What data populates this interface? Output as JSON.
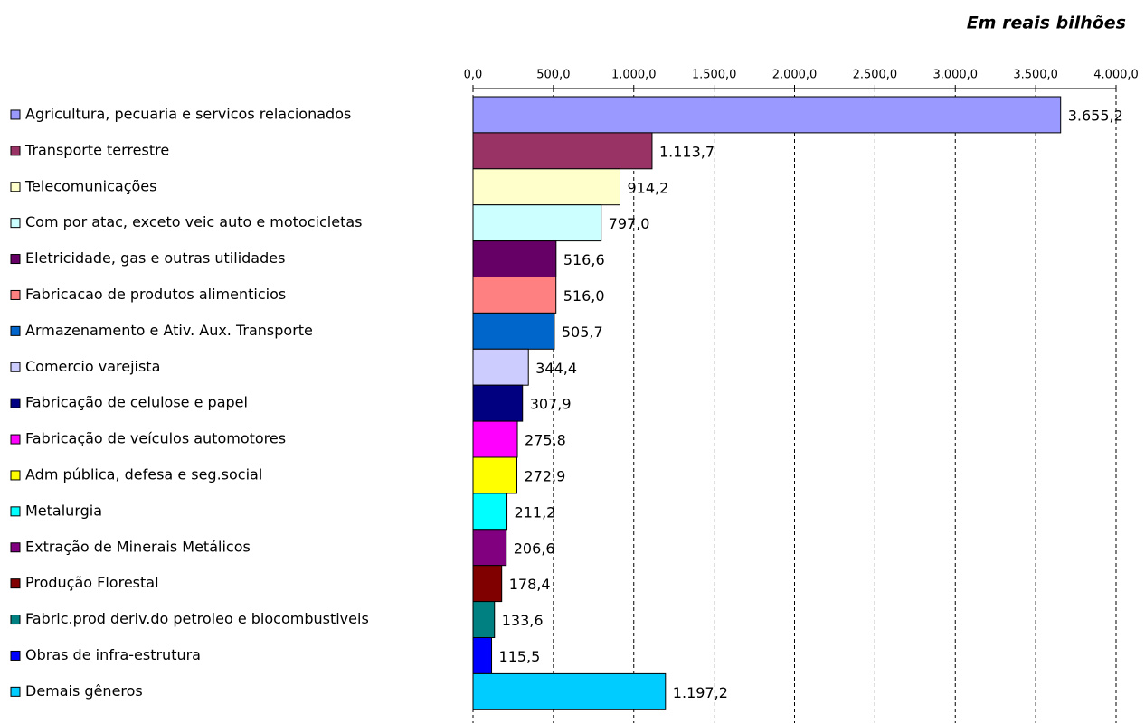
{
  "chart_data": {
    "type": "barh",
    "title": "Em reais bilhões",
    "categories": [
      "Agricultura, pecuaria e servicos relacionados",
      "Transporte terrestre",
      "Telecomunicações",
      "Com por atac, exceto veic auto e motocicletas",
      "Eletricidade, gas e outras utilidades",
      "Fabricacao de produtos alimenticios",
      "Armazenamento e Ativ. Aux. Transporte",
      "Comercio varejista",
      "Fabricação de celulose e papel",
      "Fabricação de veículos automotores",
      "Adm pública, defesa e seg.social",
      "Metalurgia",
      "Extração de Minerais Metálicos",
      "Produção Florestal",
      "Fabric.prod deriv.do petroleo e biocombustiveis",
      "Obras de infra-estrutura",
      "Demais gêneros"
    ],
    "values": [
      3655.2,
      1113.7,
      914.2,
      797.0,
      516.6,
      516.0,
      505.7,
      344.4,
      307.9,
      275.8,
      272.9,
      211.2,
      206.6,
      178.4,
      133.6,
      115.5,
      1197.2
    ],
    "value_labels": [
      "3.655,2",
      "1.113,7",
      "914,2",
      "797,0",
      "516,6",
      "516,0",
      "505,7",
      "344,4",
      "307,9",
      "275,8",
      "272,9",
      "211,2",
      "206,6",
      "178,4",
      "133,6",
      "115,5",
      "1.197,2"
    ],
    "colors": [
      "#9999ff",
      "#993366",
      "#ffffcc",
      "#ccffff",
      "#660066",
      "#ff8080",
      "#0066cc",
      "#ccccff",
      "#000080",
      "#ff00ff",
      "#ffff00",
      "#00ffff",
      "#800080",
      "#800000",
      "#008080",
      "#0000ff",
      "#00ccff"
    ],
    "xlim": [
      0,
      4000
    ],
    "xticks": [
      {
        "value": 0,
        "label": "0,0"
      },
      {
        "value": 500,
        "label": "500,0"
      },
      {
        "value": 1000,
        "label": "1.000,0"
      },
      {
        "value": 1500,
        "label": "1.500,0"
      },
      {
        "value": 2000,
        "label": "2.000,0"
      },
      {
        "value": 2500,
        "label": "2.500,0"
      },
      {
        "value": 3000,
        "label": "3.000,0"
      },
      {
        "value": 3500,
        "label": "3.500,0"
      },
      {
        "value": 4000,
        "label": "4.000,0"
      }
    ],
    "grid": true
  }
}
